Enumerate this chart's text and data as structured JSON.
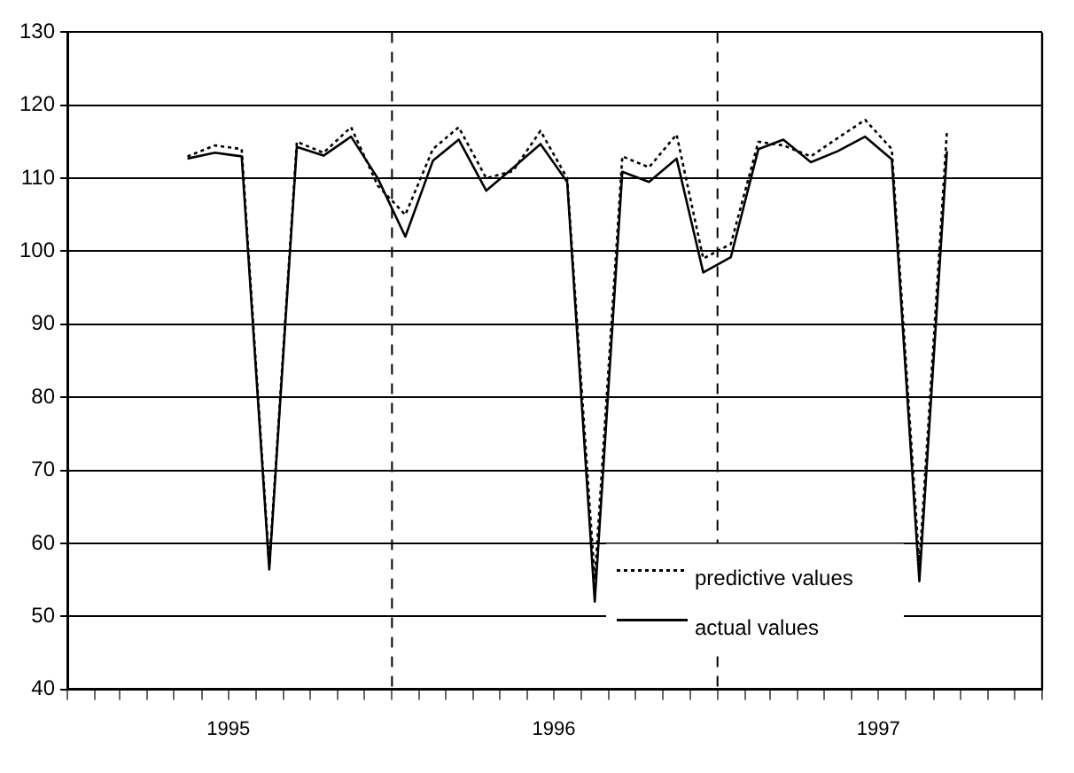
{
  "chart_data": {
    "type": "line",
    "xlim": [
      "1995-01",
      "1998-01"
    ],
    "xticks": [
      {
        "value": "1995-01",
        "label": null
      },
      {
        "value": "1995-02",
        "label": null
      },
      {
        "value": "1995-03",
        "label": null
      },
      {
        "value": "1995-04",
        "label": null
      },
      {
        "value": "1995-05",
        "label": null
      },
      {
        "value": "1995-06",
        "label": null
      },
      {
        "value": "1995-07",
        "label": "1995"
      },
      {
        "value": "1995-08",
        "label": null
      },
      {
        "value": "1995-09",
        "label": null
      },
      {
        "value": "1995-10",
        "label": null
      },
      {
        "value": "1995-11",
        "label": null
      },
      {
        "value": "1995-12",
        "label": null
      },
      {
        "value": "1996-01",
        "label": null
      },
      {
        "value": "1996-02",
        "label": null
      },
      {
        "value": "1996-03",
        "label": null
      },
      {
        "value": "1996-04",
        "label": null
      },
      {
        "value": "1996-05",
        "label": null
      },
      {
        "value": "1996-06",
        "label": null
      },
      {
        "value": "1996-07",
        "label": "1996"
      },
      {
        "value": "1996-08",
        "label": null
      },
      {
        "value": "1996-09",
        "label": null
      },
      {
        "value": "1996-10",
        "label": null
      },
      {
        "value": "1996-11",
        "label": null
      },
      {
        "value": "1996-12",
        "label": null
      },
      {
        "value": "1997-01",
        "label": null
      },
      {
        "value": "1997-02",
        "label": null
      },
      {
        "value": "1997-03",
        "label": null
      },
      {
        "value": "1997-04",
        "label": null
      },
      {
        "value": "1997-05",
        "label": null
      },
      {
        "value": "1997-06",
        "label": null
      },
      {
        "value": "1997-07",
        "label": "1997"
      },
      {
        "value": "1997-08",
        "label": null
      },
      {
        "value": "1997-09",
        "label": null
      },
      {
        "value": "1997-10",
        "label": null
      },
      {
        "value": "1997-11",
        "label": null
      },
      {
        "value": "1997-12",
        "label": null
      },
      {
        "value": "1998-01",
        "label": null
      }
    ],
    "ylim": [
      40,
      130
    ],
    "yticks": [
      40,
      50,
      60,
      70,
      80,
      90,
      100,
      110,
      120,
      130
    ],
    "grid": "y",
    "legend": "bottom right",
    "marker": "none",
    "x": [
      "1995-05-16",
      "1995-06-16",
      "1995-07-16",
      "1995-08-16",
      "1995-09-16",
      "1995-10-16",
      "1995-11-16",
      "1995-12-16",
      "1996-01-16",
      "1996-02-16",
      "1996-03-16",
      "1996-04-16",
      "1996-05-16",
      "1996-06-16",
      "1996-07-16",
      "1996-08-16",
      "1996-09-16",
      "1996-10-16",
      "1996-11-16",
      "1996-12-16",
      "1997-01-16",
      "1997-02-16",
      "1997-03-16",
      "1997-04-16",
      "1997-05-16",
      "1997-06-16",
      "1997-07-16",
      "1997-08-16",
      "1997-09-16"
    ],
    "series": [
      {
        "name": "predictive values",
        "color": "#000000",
        "line_style": "dotted",
        "values": [
          113,
          114.5,
          114,
          57,
          115,
          113.5,
          117,
          109,
          105,
          114,
          117,
          110,
          111,
          116.5,
          110,
          55,
          113,
          111.5,
          116,
          99,
          101,
          115,
          114.5,
          113,
          115.5,
          118,
          114,
          57,
          116.5
        ]
      },
      {
        "name": "actual values",
        "color": "#000000",
        "line_style": "solid",
        "values": [
          112.7,
          113.5,
          113,
          56.4,
          114.3,
          113.1,
          115.7,
          110,
          102,
          112.4,
          115.3,
          108.3,
          111.4,
          114.7,
          109.5,
          52,
          110.9,
          109.5,
          112.7,
          97.1,
          99.2,
          114,
          115.3,
          112.2,
          113.7,
          115.7,
          112.6,
          54.8,
          113.7
        ]
      }
    ],
    "ref_lines": [
      {
        "axis": "x",
        "value": "1996-01",
        "line_style": "dashed"
      },
      {
        "axis": "x",
        "value": "1997-01",
        "line_style": "dashed"
      }
    ]
  }
}
